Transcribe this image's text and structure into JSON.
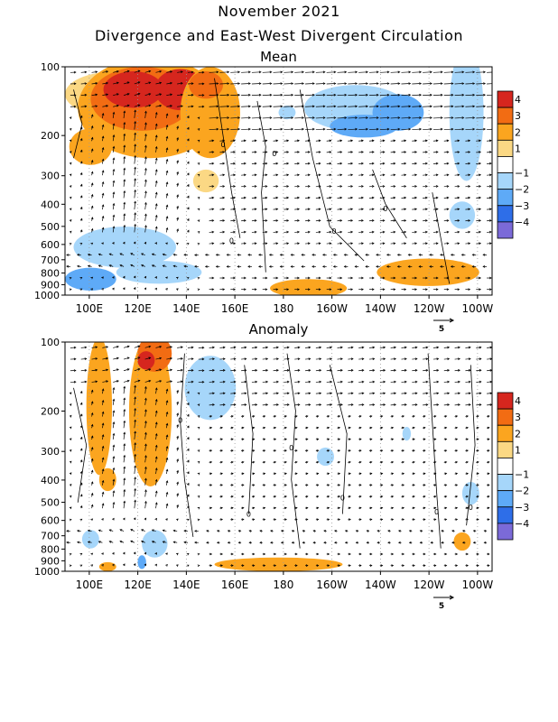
{
  "header": {
    "title": "November 2021",
    "subtitle": "Divergence and East-West Divergent Circulation"
  },
  "chart_data": [
    {
      "type": "heatmap",
      "title": "Mean",
      "x_ticks": [
        "100E",
        "120E",
        "140E",
        "160E",
        "180",
        "160W",
        "140W",
        "120W",
        "100W"
      ],
      "x_tick_lon": [
        100,
        120,
        140,
        160,
        180,
        200,
        220,
        240,
        260
      ],
      "xlim": [
        90,
        266
      ],
      "y_ticks": [
        "100",
        "200",
        "300",
        "400",
        "500",
        "600",
        "700",
        "800",
        "900",
        "1000"
      ],
      "y_tick_hpa": [
        100,
        200,
        300,
        400,
        500,
        600,
        700,
        800,
        900,
        1000
      ],
      "ylim": [
        100,
        1000
      ],
      "y_scale": "log",
      "colorbar_levels": [
        "4",
        "3",
        "2",
        "1",
        "-1",
        "-2",
        "-3",
        "-4"
      ],
      "colorbar_colors": [
        "#d6261e",
        "#f26c13",
        "#fba51f",
        "#fbd884",
        "#ffffff",
        "#a6d6fa",
        "#5eaaf7",
        "#2e6ee8",
        "#7b6ad8"
      ],
      "vector_reference": "5",
      "contour_labels": [
        "0",
        "0",
        "0",
        "0",
        "0"
      ]
    },
    {
      "type": "heatmap",
      "title": "Anomaly",
      "x_ticks": [
        "100E",
        "120E",
        "140E",
        "160E",
        "180",
        "160W",
        "140W",
        "120W",
        "100W"
      ],
      "x_tick_lon": [
        100,
        120,
        140,
        160,
        180,
        200,
        220,
        240,
        260
      ],
      "xlim": [
        90,
        266
      ],
      "y_ticks": [
        "100",
        "200",
        "300",
        "400",
        "500",
        "600",
        "700",
        "800",
        "900",
        "1000"
      ],
      "y_tick_hpa": [
        100,
        200,
        300,
        400,
        500,
        600,
        700,
        800,
        900,
        1000
      ],
      "ylim": [
        100,
        1000
      ],
      "y_scale": "log",
      "colorbar_levels": [
        "4",
        "3",
        "2",
        "1",
        "-1",
        "-2",
        "-3",
        "-4"
      ],
      "colorbar_colors": [
        "#d6261e",
        "#f26c13",
        "#fba51f",
        "#fbd884",
        "#ffffff",
        "#a6d6fa",
        "#5eaaf7",
        "#2e6ee8",
        "#7b6ad8"
      ],
      "vector_reference": "5",
      "contour_labels": [
        "0",
        "0",
        "0",
        "0",
        "0",
        "0"
      ]
    }
  ]
}
